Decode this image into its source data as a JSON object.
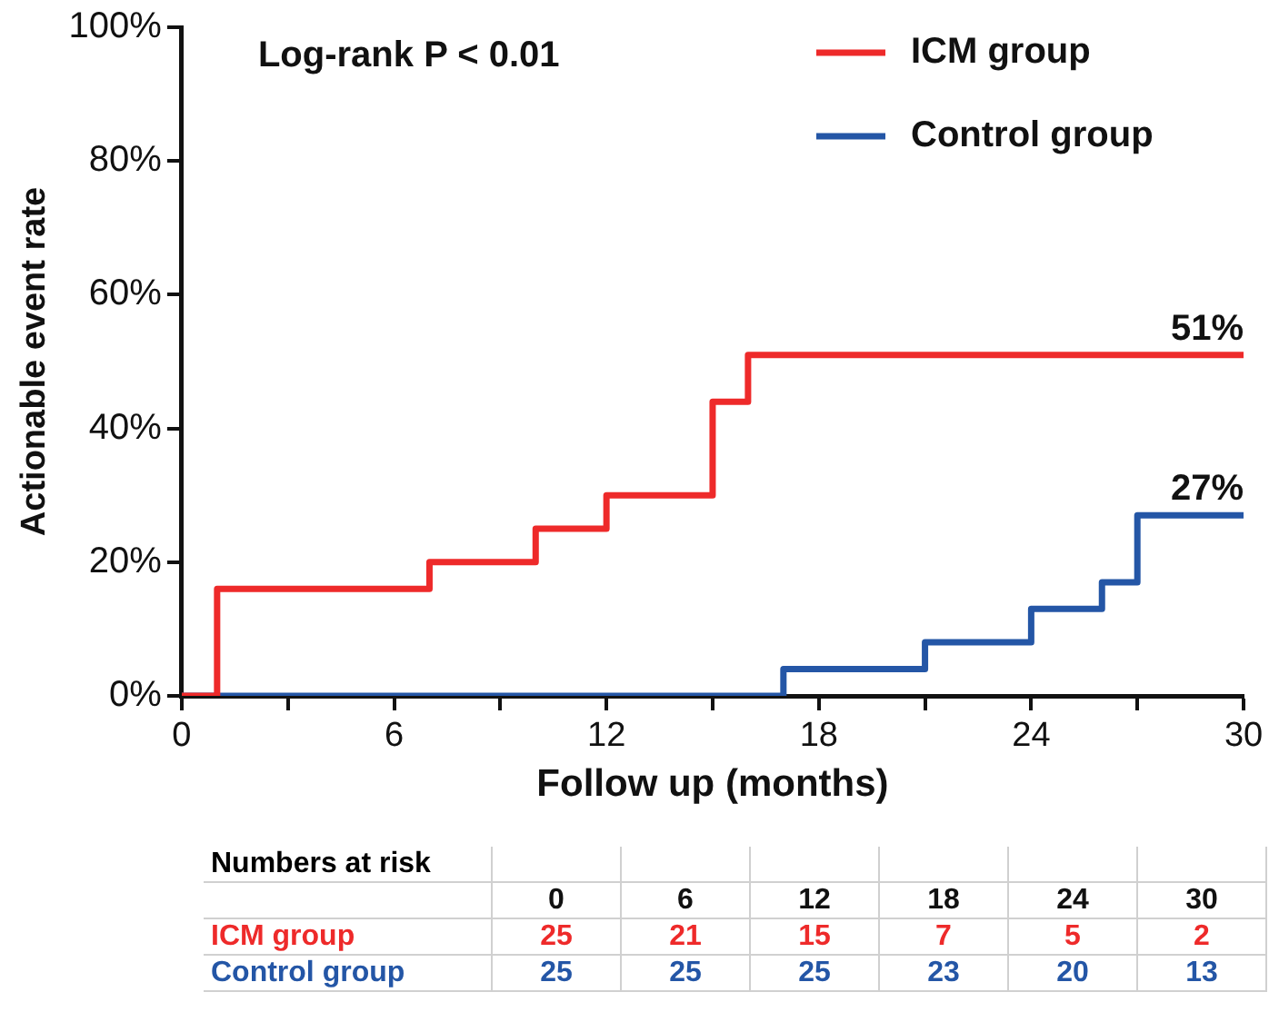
{
  "chart_data": {
    "type": "step",
    "xlabel": "Follow up (months)",
    "ylabel": "Actionable event rate",
    "xlim": [
      0,
      30
    ],
    "xticks": [
      0,
      {
        "value": 3,
        "label": null
      },
      6,
      {
        "value": 9,
        "label": null
      },
      12,
      {
        "value": 15,
        "label": null
      },
      18,
      {
        "value": 21,
        "label": null
      },
      24,
      {
        "value": 27,
        "label": null
      },
      30
    ],
    "ylim": [
      0,
      100
    ],
    "yticks": [
      {
        "value": 0,
        "label": "0%"
      },
      {
        "value": 20,
        "label": "20%"
      },
      {
        "value": 40,
        "label": "40%"
      },
      {
        "value": 60,
        "label": "60%"
      },
      {
        "value": 80,
        "label": "80%"
      },
      {
        "value": 100,
        "label": "100%"
      }
    ],
    "grid": false,
    "legend": "top right",
    "marker": "none",
    "line_style": "solid",
    "series": [
      {
        "name": "ICM group",
        "color": "#ee2a2a",
        "x": [
          0,
          1,
          7,
          10,
          12,
          15,
          16,
          30
        ],
        "values": [
          0,
          16,
          20,
          25,
          30,
          44,
          51,
          51
        ],
        "value_labels": [
          null,
          null,
          null,
          null,
          null,
          null,
          null,
          "51%"
        ]
      },
      {
        "name": "Control group",
        "color": "#2456a6",
        "x": [
          0,
          17,
          21,
          24,
          26,
          27,
          30
        ],
        "values": [
          0,
          4,
          8,
          13,
          17,
          27,
          27
        ],
        "value_labels": [
          null,
          null,
          null,
          null,
          null,
          null,
          "27%"
        ]
      }
    ],
    "annotations": [
      "Log-rank P < 0.01",
      "Numbers at risk",
      "0",
      "6",
      "12",
      "18",
      "24",
      "30",
      "25",
      "21",
      "15",
      "7",
      "5",
      "2",
      "25",
      "25",
      "25",
      "23",
      "20",
      "13"
    ]
  }
}
